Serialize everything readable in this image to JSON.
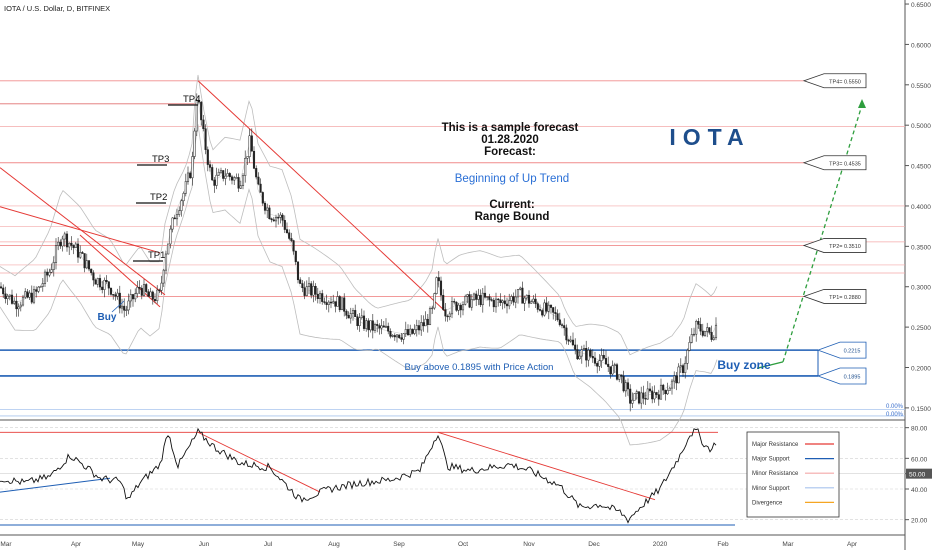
{
  "header": {
    "title": "IOTA / U.S. Dollar, D, BITFINEX"
  },
  "annotations": {
    "sample": "This is a sample forecast",
    "date": "01.28.2020",
    "forecast": "Forecast:",
    "forecast_value": "Beginning of Up Trend",
    "current": "Current:",
    "current_value": "Range Bound",
    "brand": "IOTA",
    "buy_zone": "Buy zone",
    "buy_above": "Buy above 0.1895 with Price Action",
    "buy": "Buy",
    "tp1": "TP1",
    "tp2": "TP2",
    "tp3": "TP3",
    "tp4": "TP4"
  },
  "targets": [
    {
      "label": "TP4= 0.5550",
      "value": 0.555
    },
    {
      "label": "TP3= 0.4535",
      "value": 0.4535
    },
    {
      "label": "TP2= 0.3510",
      "value": 0.351
    },
    {
      "label": "TP1= 0.2880",
      "value": 0.288
    }
  ],
  "zone": {
    "top_label": "0.2215",
    "bottom_label": "0.1895",
    "top": 0.2215,
    "bottom": 0.1895
  },
  "fib_labels": [
    "0.00%",
    "0.00%"
  ],
  "legend": [
    {
      "label": "Major Resistance",
      "color": "#e53935"
    },
    {
      "label": "Major Support",
      "color": "#1e5eb4"
    },
    {
      "label": "Minor Resistance",
      "color": "#f4a9a9"
    },
    {
      "label": "Minor Support",
      "color": "#a9c4ee"
    },
    {
      "label": "Divergence",
      "color": "#f5a623"
    }
  ],
  "colors": {
    "up": "#ffffff",
    "down": "#222222",
    "resistance": "#e53935",
    "support": "#1e5eb4",
    "forecast": "#2e9e3e",
    "brand": "#1e4e8c",
    "forecast_text": "#2a6fd6"
  },
  "chart_data": {
    "type": "candlestick",
    "months": [
      "Mar",
      "Apr",
      "May",
      "Jun",
      "Jul",
      "Aug",
      "Sep",
      "Oct",
      "Nov",
      "Dec",
      "2020",
      "Feb",
      "Mar",
      "Apr"
    ],
    "price_axis": [
      "0.6500",
      "0.6000",
      "0.5500",
      "0.5000",
      "0.4500",
      "0.4000",
      "0.3500",
      "0.3000",
      "0.2500",
      "0.2000",
      "0.1500"
    ],
    "price_range": [
      0.135,
      0.655
    ],
    "rsi_axis": [
      "80.00",
      "60.00",
      "50.00",
      "40.00",
      "20.00"
    ],
    "rsi_range": [
      10,
      85
    ],
    "rsi_current": "50.00",
    "price_keypoints": [
      [
        0,
        0.3
      ],
      [
        15,
        0.28
      ],
      [
        35,
        0.29
      ],
      [
        50,
        0.32
      ],
      [
        62,
        0.365
      ],
      [
        80,
        0.34
      ],
      [
        95,
        0.31
      ],
      [
        110,
        0.3
      ],
      [
        125,
        0.27
      ],
      [
        140,
        0.3
      ],
      [
        150,
        0.285
      ],
      [
        160,
        0.29
      ],
      [
        165,
        0.34
      ],
      [
        175,
        0.39
      ],
      [
        185,
        0.42
      ],
      [
        192,
        0.45
      ],
      [
        197,
        0.54
      ],
      [
        203,
        0.49
      ],
      [
        212,
        0.43
      ],
      [
        225,
        0.44
      ],
      [
        240,
        0.43
      ],
      [
        250,
        0.48
      ],
      [
        258,
        0.42
      ],
      [
        270,
        0.39
      ],
      [
        282,
        0.385
      ],
      [
        292,
        0.35
      ],
      [
        300,
        0.3
      ],
      [
        320,
        0.29
      ],
      [
        340,
        0.28
      ],
      [
        355,
        0.26
      ],
      [
        370,
        0.25
      ],
      [
        390,
        0.245
      ],
      [
        410,
        0.24
      ],
      [
        425,
        0.255
      ],
      [
        433,
        0.27
      ],
      [
        437,
        0.31
      ],
      [
        445,
        0.27
      ],
      [
        460,
        0.28
      ],
      [
        480,
        0.285
      ],
      [
        500,
        0.28
      ],
      [
        520,
        0.29
      ],
      [
        540,
        0.275
      ],
      [
        560,
        0.26
      ],
      [
        575,
        0.22
      ],
      [
        590,
        0.215
      ],
      [
        605,
        0.205
      ],
      [
        620,
        0.19
      ],
      [
        630,
        0.16
      ],
      [
        645,
        0.165
      ],
      [
        660,
        0.17
      ],
      [
        672,
        0.18
      ],
      [
        683,
        0.2
      ],
      [
        690,
        0.23
      ],
      [
        696,
        0.25
      ],
      [
        705,
        0.245
      ],
      [
        712,
        0.24
      ],
      [
        717,
        0.255
      ]
    ],
    "rsi_keypoints": [
      [
        0,
        47
      ],
      [
        25,
        44
      ],
      [
        50,
        48
      ],
      [
        70,
        62
      ],
      [
        85,
        55
      ],
      [
        100,
        47
      ],
      [
        120,
        45
      ],
      [
        128,
        33
      ],
      [
        140,
        44
      ],
      [
        160,
        56
      ],
      [
        168,
        77
      ],
      [
        178,
        55
      ],
      [
        198,
        77
      ],
      [
        215,
        67
      ],
      [
        240,
        57
      ],
      [
        270,
        54
      ],
      [
        300,
        33
      ],
      [
        330,
        40
      ],
      [
        360,
        44
      ],
      [
        390,
        46
      ],
      [
        420,
        52
      ],
      [
        438,
        77
      ],
      [
        447,
        55
      ],
      [
        470,
        52
      ],
      [
        510,
        56
      ],
      [
        530,
        52
      ],
      [
        560,
        42
      ],
      [
        580,
        28
      ],
      [
        600,
        30
      ],
      [
        620,
        25
      ],
      [
        628,
        20
      ],
      [
        640,
        28
      ],
      [
        660,
        40
      ],
      [
        680,
        62
      ],
      [
        690,
        76
      ],
      [
        697,
        78
      ],
      [
        705,
        68
      ],
      [
        712,
        66
      ],
      [
        717,
        72
      ]
    ]
  }
}
